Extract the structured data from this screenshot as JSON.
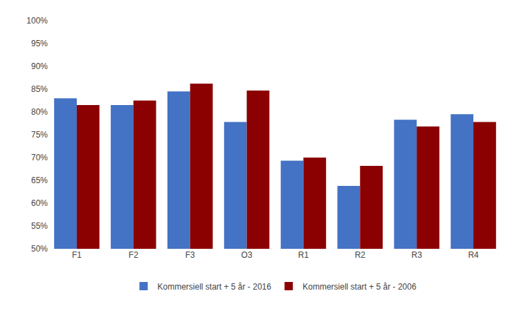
{
  "chart_data": {
    "type": "bar",
    "categories": [
      "F1",
      "F2",
      "F3",
      "O3",
      "R1",
      "R2",
      "R3",
      "R4"
    ],
    "series": [
      {
        "name": "Kommersiell start + 5 år - 2016",
        "color": "#4472C4",
        "values": [
          0.83,
          0.815,
          0.845,
          0.778,
          0.693,
          0.638,
          0.783,
          0.795
        ]
      },
      {
        "name": "Kommersiell start + 5 år - 2006",
        "color": "#8B0000",
        "values": [
          0.815,
          0.825,
          0.862,
          0.847,
          0.7,
          0.682,
          0.768,
          0.778
        ]
      }
    ],
    "ylim": [
      0.5,
      1.0
    ],
    "yticks": [
      {
        "value": 0.5,
        "label": "50%"
      },
      {
        "value": 0.55,
        "label": "55%"
      },
      {
        "value": 0.6,
        "label": "60%"
      },
      {
        "value": 0.65,
        "label": "65%"
      },
      {
        "value": 0.7,
        "label": "70%"
      },
      {
        "value": 0.75,
        "label": "75%"
      },
      {
        "value": 0.8,
        "label": "80%"
      },
      {
        "value": 0.85,
        "label": "85%"
      },
      {
        "value": 0.9,
        "label": "90%"
      },
      {
        "value": 0.95,
        "label": "95%"
      },
      {
        "value": 1.0,
        "label": "100%"
      }
    ],
    "grid": false,
    "legend": "bottom"
  }
}
